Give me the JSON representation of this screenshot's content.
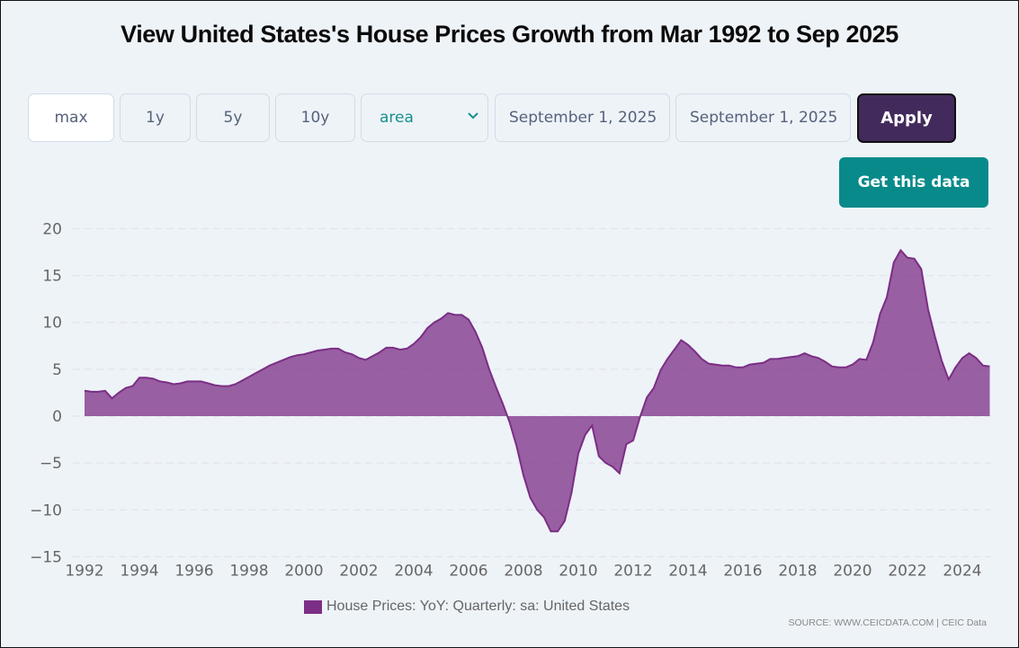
{
  "page": {
    "title": "View United States's House Prices Growth from Mar 1992 to Sep 2025"
  },
  "controls": {
    "range_buttons": [
      {
        "label": "max",
        "active": true
      },
      {
        "label": "1y",
        "active": false
      },
      {
        "label": "5y",
        "active": false
      },
      {
        "label": "10y",
        "active": false
      }
    ],
    "chart_type_select": {
      "value": "area"
    },
    "start_date": {
      "value": "September 1, 2025"
    },
    "end_date": {
      "value": "September 1, 2025"
    },
    "apply_label": "Apply",
    "get_data_label": "Get this data"
  },
  "colors": {
    "series_fill": "#7b2e85",
    "series_line": "#7b2e85",
    "apply_bg": "#432a5c",
    "get_data_bg": "#088a8a",
    "select_text": "#16918e"
  },
  "legend": {
    "label": "House Prices: YoY: Quarterly: sa: United States"
  },
  "source": {
    "text": "SOURCE: WWW.CEICDATA.COM | CEIC Data"
  },
  "chart_data": {
    "type": "area",
    "title": "View United States's House Prices Growth from Mar 1992 to Sep 2025",
    "xlabel": "",
    "ylabel": "",
    "ylim": [
      -15,
      20
    ],
    "xlim": [
      1992,
      2025.25
    ],
    "yticks": [
      20,
      15,
      10,
      5,
      0,
      -5,
      -10,
      -15
    ],
    "xticks": [
      "1992",
      "1994",
      "1996",
      "1998",
      "2000",
      "2002",
      "2004",
      "2006",
      "2008",
      "2010",
      "2012",
      "2014",
      "2016",
      "2018",
      "2020",
      "2022",
      "2024"
    ],
    "grid": true,
    "legend_position": "bottom-center",
    "estimated": true,
    "estimation_note": "Values were read visually off the rendered curve using axis pixel scales; expect roughly ±0.3 units of error. They are not source data.",
    "series": [
      {
        "name": "House Prices: YoY: Quarterly: sa: United States",
        "points": [
          [
            1992.0,
            2.7
          ],
          [
            1992.25,
            2.6
          ],
          [
            1992.5,
            2.6
          ],
          [
            1992.75,
            2.7
          ],
          [
            1993.0,
            1.9
          ],
          [
            1993.25,
            2.5
          ],
          [
            1993.5,
            3.0
          ],
          [
            1993.75,
            3.2
          ],
          [
            1994.0,
            4.1
          ],
          [
            1994.25,
            4.1
          ],
          [
            1994.5,
            4.0
          ],
          [
            1994.75,
            3.7
          ],
          [
            1995.0,
            3.6
          ],
          [
            1995.25,
            3.4
          ],
          [
            1995.5,
            3.5
          ],
          [
            1995.75,
            3.7
          ],
          [
            1996.0,
            3.7
          ],
          [
            1996.25,
            3.7
          ],
          [
            1996.5,
            3.5
          ],
          [
            1996.75,
            3.3
          ],
          [
            1997.0,
            3.2
          ],
          [
            1997.25,
            3.2
          ],
          [
            1997.5,
            3.4
          ],
          [
            1997.75,
            3.8
          ],
          [
            1998.0,
            4.2
          ],
          [
            1998.25,
            4.6
          ],
          [
            1998.5,
            5.0
          ],
          [
            1998.75,
            5.4
          ],
          [
            1999.0,
            5.7
          ],
          [
            1999.25,
            6.0
          ],
          [
            1999.5,
            6.3
          ],
          [
            1999.75,
            6.5
          ],
          [
            2000.0,
            6.6
          ],
          [
            2000.25,
            6.8
          ],
          [
            2000.5,
            7.0
          ],
          [
            2000.75,
            7.1
          ],
          [
            2001.0,
            7.2
          ],
          [
            2001.25,
            7.2
          ],
          [
            2001.5,
            6.8
          ],
          [
            2001.75,
            6.6
          ],
          [
            2002.0,
            6.2
          ],
          [
            2002.25,
            6.0
          ],
          [
            2002.5,
            6.4
          ],
          [
            2002.75,
            6.8
          ],
          [
            2003.0,
            7.3
          ],
          [
            2003.25,
            7.3
          ],
          [
            2003.5,
            7.1
          ],
          [
            2003.75,
            7.2
          ],
          [
            2004.0,
            7.7
          ],
          [
            2004.25,
            8.4
          ],
          [
            2004.5,
            9.4
          ],
          [
            2004.75,
            10.0
          ],
          [
            2005.0,
            10.4
          ],
          [
            2005.25,
            11.0
          ],
          [
            2005.5,
            10.8
          ],
          [
            2005.75,
            10.8
          ],
          [
            2006.0,
            10.3
          ],
          [
            2006.25,
            9.0
          ],
          [
            2006.5,
            7.3
          ],
          [
            2006.75,
            5.0
          ],
          [
            2007.0,
            3.1
          ],
          [
            2007.25,
            1.3
          ],
          [
            2007.5,
            -0.7
          ],
          [
            2007.75,
            -3.2
          ],
          [
            2008.0,
            -6.3
          ],
          [
            2008.25,
            -8.7
          ],
          [
            2008.5,
            -10.0
          ],
          [
            2008.75,
            -10.8
          ],
          [
            2009.0,
            -12.3
          ],
          [
            2009.25,
            -12.3
          ],
          [
            2009.5,
            -11.2
          ],
          [
            2009.75,
            -8.2
          ],
          [
            2010.0,
            -4.0
          ],
          [
            2010.25,
            -2.0
          ],
          [
            2010.5,
            -1.0
          ],
          [
            2010.75,
            -4.3
          ],
          [
            2011.0,
            -5.0
          ],
          [
            2011.25,
            -5.4
          ],
          [
            2011.5,
            -6.1
          ],
          [
            2011.75,
            -3.0
          ],
          [
            2012.0,
            -2.6
          ],
          [
            2012.25,
            -0.1
          ],
          [
            2012.5,
            2.0
          ],
          [
            2012.75,
            3.0
          ],
          [
            2013.0,
            4.9
          ],
          [
            2013.25,
            6.1
          ],
          [
            2013.5,
            7.1
          ],
          [
            2013.75,
            8.1
          ],
          [
            2014.0,
            7.6
          ],
          [
            2014.25,
            6.9
          ],
          [
            2014.5,
            6.1
          ],
          [
            2014.75,
            5.6
          ],
          [
            2015.0,
            5.5
          ],
          [
            2015.25,
            5.4
          ],
          [
            2015.5,
            5.4
          ],
          [
            2015.75,
            5.2
          ],
          [
            2016.0,
            5.2
          ],
          [
            2016.25,
            5.5
          ],
          [
            2016.5,
            5.6
          ],
          [
            2016.75,
            5.7
          ],
          [
            2017.0,
            6.1
          ],
          [
            2017.25,
            6.1
          ],
          [
            2017.5,
            6.2
          ],
          [
            2017.75,
            6.3
          ],
          [
            2018.0,
            6.4
          ],
          [
            2018.25,
            6.7
          ],
          [
            2018.5,
            6.4
          ],
          [
            2018.75,
            6.2
          ],
          [
            2019.0,
            5.8
          ],
          [
            2019.25,
            5.3
          ],
          [
            2019.5,
            5.2
          ],
          [
            2019.75,
            5.2
          ],
          [
            2020.0,
            5.5
          ],
          [
            2020.25,
            6.1
          ],
          [
            2020.5,
            6.0
          ],
          [
            2020.75,
            7.9
          ],
          [
            2021.0,
            10.9
          ],
          [
            2021.25,
            12.7
          ],
          [
            2021.5,
            16.4
          ],
          [
            2021.75,
            17.7
          ],
          [
            2022.0,
            16.9
          ],
          [
            2022.25,
            16.8
          ],
          [
            2022.5,
            15.7
          ],
          [
            2022.75,
            11.4
          ],
          [
            2023.0,
            8.5
          ],
          [
            2023.25,
            5.9
          ],
          [
            2023.5,
            3.9
          ],
          [
            2023.75,
            5.2
          ],
          [
            2024.0,
            6.2
          ],
          [
            2024.25,
            6.7
          ],
          [
            2024.5,
            6.2
          ],
          [
            2024.75,
            5.4
          ],
          [
            2025.0,
            5.3
          ]
        ]
      }
    ]
  }
}
